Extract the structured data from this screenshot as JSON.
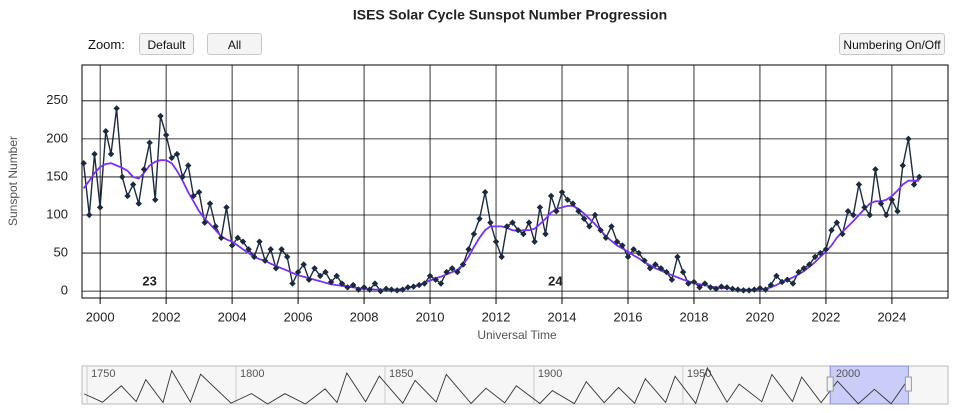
{
  "ui": {
    "zoom_label": "Zoom:",
    "buttons": [
      "Default",
      "All"
    ],
    "numbering_button": "Numbering On/Off"
  },
  "chart_data": {
    "type": "line",
    "title": "ISES Solar Cycle Sunspot Number Progression",
    "y_label": "Sunspot Number",
    "x_label": "Universal Time",
    "xlim": [
      1999.45,
      2025.7
    ],
    "ylim": [
      -9,
      297
    ],
    "xticks": [
      2000,
      2002,
      2004,
      2006,
      2008,
      2010,
      2012,
      2014,
      2016,
      2018,
      2020,
      2022,
      2024
    ],
    "yticks": [
      0,
      50,
      100,
      150,
      200,
      250
    ],
    "grid": true,
    "x": [
      1999.5,
      1999.67,
      1999.83,
      2000,
      2000.17,
      2000.33,
      2000.5,
      2000.67,
      2000.83,
      2001,
      2001.17,
      2001.33,
      2001.5,
      2001.67,
      2001.83,
      2002,
      2002.17,
      2002.33,
      2002.5,
      2002.67,
      2002.83,
      2003,
      2003.17,
      2003.33,
      2003.5,
      2003.67,
      2003.83,
      2004,
      2004.17,
      2004.33,
      2004.5,
      2004.67,
      2004.83,
      2005,
      2005.17,
      2005.33,
      2005.5,
      2005.67,
      2005.83,
      2006,
      2006.17,
      2006.33,
      2006.5,
      2006.67,
      2006.83,
      2007,
      2007.17,
      2007.33,
      2007.5,
      2007.67,
      2007.83,
      2008,
      2008.17,
      2008.33,
      2008.5,
      2008.67,
      2008.83,
      2009,
      2009.17,
      2009.33,
      2009.5,
      2009.67,
      2009.83,
      2010,
      2010.17,
      2010.33,
      2010.5,
      2010.67,
      2010.83,
      2011,
      2011.17,
      2011.33,
      2011.5,
      2011.67,
      2011.83,
      2012,
      2012.17,
      2012.33,
      2012.5,
      2012.67,
      2012.83,
      2013,
      2013.17,
      2013.33,
      2013.5,
      2013.67,
      2013.83,
      2014,
      2014.17,
      2014.33,
      2014.5,
      2014.67,
      2014.83,
      2015,
      2015.17,
      2015.33,
      2015.5,
      2015.67,
      2015.83,
      2016,
      2016.17,
      2016.33,
      2016.5,
      2016.67,
      2016.83,
      2017,
      2017.17,
      2017.33,
      2017.5,
      2017.67,
      2017.83,
      2018,
      2018.17,
      2018.33,
      2018.5,
      2018.67,
      2018.83,
      2019,
      2019.17,
      2019.33,
      2019.5,
      2019.67,
      2019.83,
      2020,
      2020.17,
      2020.33,
      2020.5,
      2020.67,
      2020.83,
      2021,
      2021.17,
      2021.33,
      2021.5,
      2021.67,
      2021.83,
      2022,
      2022.17,
      2022.33,
      2022.5,
      2022.67,
      2022.83,
      2023,
      2023.17,
      2023.33,
      2023.5,
      2023.67,
      2023.83,
      2024,
      2024.17,
      2024.33,
      2024.5,
      2024.67,
      2024.83
    ],
    "series": [
      {
        "color": "#1a2a40",
        "marker": "diamond",
        "values": [
          168,
          100,
          180,
          110,
          210,
          180,
          240,
          150,
          125,
          140,
          115,
          160,
          195,
          120,
          230,
          205,
          175,
          180,
          150,
          165,
          125,
          130,
          90,
          115,
          85,
          70,
          110,
          60,
          70,
          65,
          55,
          45,
          65,
          40,
          55,
          30,
          55,
          45,
          10,
          25,
          35,
          15,
          30,
          20,
          25,
          12,
          20,
          10,
          5,
          8,
          2,
          5,
          2,
          10,
          0,
          3,
          2,
          1,
          2,
          5,
          6,
          8,
          10,
          20,
          15,
          10,
          25,
          30,
          25,
          35,
          55,
          75,
          95,
          130,
          90,
          65,
          45,
          85,
          90,
          80,
          75,
          90,
          65,
          110,
          75,
          125,
          105,
          130,
          120,
          115,
          105,
          95,
          85,
          100,
          80,
          70,
          85,
          65,
          60,
          45,
          55,
          50,
          40,
          30,
          35,
          30,
          25,
          15,
          45,
          25,
          10,
          12,
          5,
          10,
          5,
          3,
          6,
          5,
          3,
          2,
          1,
          1,
          2,
          4,
          2,
          8,
          20,
          12,
          15,
          10,
          25,
          30,
          35,
          45,
          50,
          55,
          80,
          90,
          75,
          105,
          100,
          140,
          110,
          100,
          160,
          115,
          100,
          120,
          105,
          165,
          200,
          140,
          150
        ]
      },
      {
        "color": "#7b2ff7",
        "values": [
          135,
          145,
          155,
          163,
          167,
          168,
          165,
          162,
          158,
          150,
          148,
          155,
          165,
          170,
          172,
          172,
          168,
          158,
          145,
          130,
          118,
          105,
          95,
          88,
          80,
          72,
          68,
          65,
          60,
          55,
          50,
          45,
          42,
          40,
          36,
          33,
          30,
          27,
          24,
          21,
          19,
          17,
          15,
          13,
          11,
          9,
          8,
          7,
          6,
          5,
          4,
          3,
          3,
          2,
          2,
          2,
          2,
          2,
          3,
          4,
          6,
          8,
          11,
          14,
          17,
          19,
          22,
          25,
          28,
          35,
          45,
          58,
          70,
          80,
          85,
          85,
          85,
          83,
          80,
          79,
          80,
          80,
          82,
          88,
          95,
          103,
          108,
          110,
          112,
          112,
          108,
          102,
          95,
          88,
          80,
          72,
          66,
          60,
          56,
          52,
          47,
          43,
          38,
          34,
          30,
          27,
          24,
          21,
          18,
          15,
          13,
          11,
          9,
          8,
          6,
          5,
          4,
          4,
          3,
          2,
          2,
          2,
          2,
          2,
          3,
          5,
          8,
          12,
          15,
          18,
          22,
          26,
          32,
          38,
          45,
          52,
          60,
          70,
          78,
          85,
          92,
          100,
          108,
          115,
          118,
          118,
          120,
          125,
          132,
          140,
          145,
          145,
          145
        ]
      }
    ],
    "annotations": [
      {
        "label": "23",
        "x": 2001.5,
        "y": 12
      },
      {
        "label": "24",
        "x": 2013.8,
        "y": 12
      }
    ],
    "navigator": {
      "xlim": [
        1748.3,
        2039
      ],
      "ylim": [
        0,
        300
      ],
      "xticks": [
        1750,
        1800,
        1850,
        1900,
        1950,
        2000
      ],
      "color": "#333333",
      "selection_color": "#c9cdf8",
      "x": [
        1749.0,
        1755.2,
        1761.5,
        1766.5,
        1769.7,
        1775.5,
        1778.4,
        1784.7,
        1788.1,
        1798.3,
        1805.2,
        1810.6,
        1816.4,
        1823.3,
        1829.9,
        1833.9,
        1837.2,
        1843.5,
        1848.1,
        1856.0,
        1860.1,
        1867.2,
        1870.6,
        1878.9,
        1883.9,
        1890.2,
        1894.1,
        1902.0,
        1906.2,
        1913.6,
        1917.6,
        1923.6,
        1928.4,
        1933.8,
        1937.4,
        1944.2,
        1947.4,
        1954.3,
        1958.2,
        1964.8,
        1968.9,
        1976.5,
        1979.9,
        1986.8,
        1989.9,
        1996.4,
        2001.9,
        2008.9,
        2014.3,
        2019.9,
        2024.6
      ],
      "values": [
        80,
        14,
        144,
        19,
        193,
        12,
        264,
        16,
        235,
        7,
        82,
        0,
        81,
        0,
        119,
        12,
        245,
        18,
        220,
        6,
        186,
        15,
        234,
        4,
        125,
        9,
        144,
        4,
        106,
        3,
        176,
        10,
        131,
        6,
        199,
        13,
        219,
        5,
        285,
        14,
        157,
        18,
        233,
        20,
        213,
        11,
        180,
        2,
        116,
        2,
        160
      ]
    }
  }
}
